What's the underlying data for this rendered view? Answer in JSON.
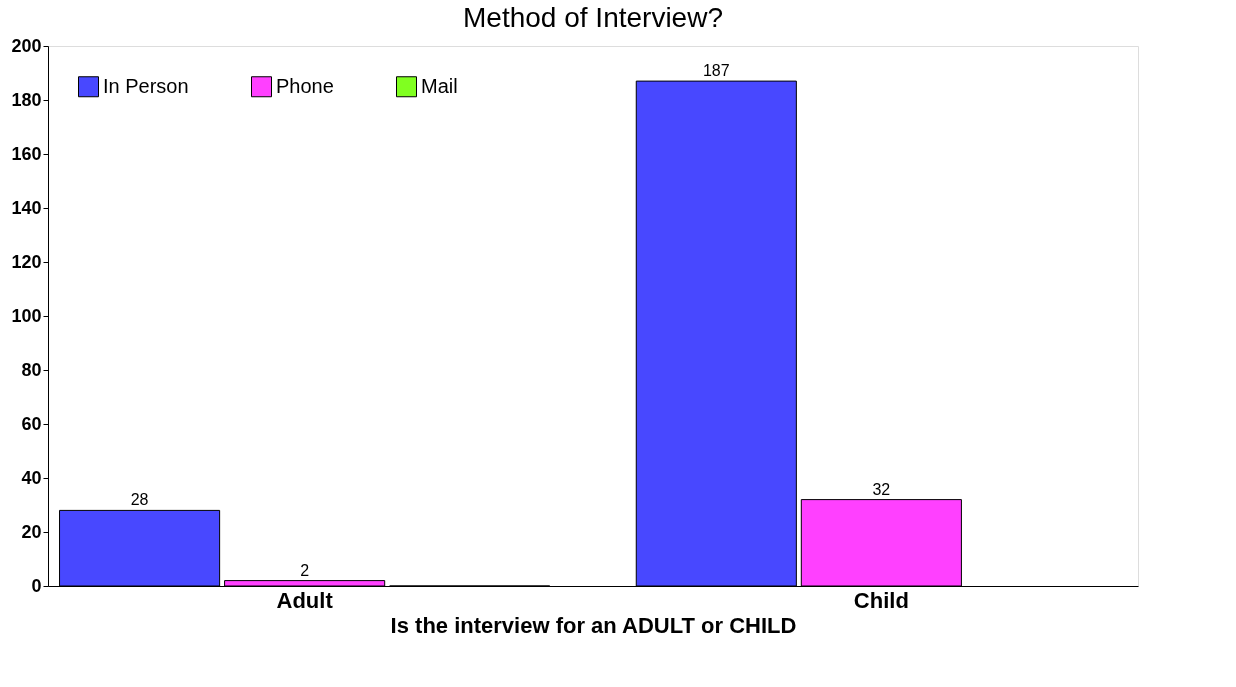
{
  "chart_data": {
    "type": "bar",
    "title": "Method of Interview?",
    "xlabel": "Is the interview for an ADULT or CHILD",
    "categories": [
      "Adult",
      "Child"
    ],
    "series": [
      {
        "name": "In Person",
        "color": "#4848ff",
        "values": [
          28,
          187
        ],
        "value_labels": [
          "28",
          "187"
        ]
      },
      {
        "name": "Phone",
        "color": "#ff40ff",
        "values": [
          2,
          32
        ],
        "value_labels": [
          "2",
          "32"
        ]
      },
      {
        "name": "Mail",
        "color": "#80ff20",
        "values": [
          0,
          null
        ],
        "value_labels": [
          null,
          null
        ]
      }
    ],
    "ylim": [
      0,
      200
    ],
    "yticks": [
      0,
      20,
      40,
      60,
      80,
      100,
      120,
      140,
      160,
      180,
      200
    ],
    "grid": false,
    "legend": "top left"
  }
}
